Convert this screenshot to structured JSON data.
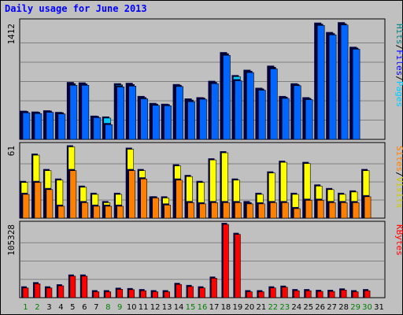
{
  "chart_data": {
    "type": "bar",
    "title": "Daily usage for June 2013",
    "days": [
      "1",
      "2",
      "3",
      "4",
      "5",
      "6",
      "7",
      "8",
      "9",
      "10",
      "11",
      "12",
      "13",
      "14",
      "15",
      "16",
      "17",
      "18",
      "19",
      "20",
      "21",
      "22",
      "23",
      "24",
      "25",
      "26",
      "27",
      "28",
      "29",
      "30",
      "31"
    ],
    "weekend_days": [
      "1",
      "2",
      "8",
      "9",
      "15",
      "16",
      "22",
      "23",
      "29",
      "30"
    ],
    "colors": {
      "hits": "#00ccff",
      "files": "#0066ff",
      "pages": "#00ccff",
      "visits": "#ffff00",
      "sites": "#ff8000",
      "kbytes": "#ff0000",
      "title": "#0000ff",
      "weekday_label": "#000000",
      "weekend_label": "#008000"
    },
    "panels": [
      {
        "id": "hits-files-pages",
        "max_label": "1412",
        "ymax": 1412,
        "legend": [
          {
            "text": "Pages",
            "color": "#00ccff"
          },
          {
            "text": "/",
            "color": "#000000"
          },
          {
            "text": "Files",
            "color": "#0000ff"
          },
          {
            "text": "/",
            "color": "#000000"
          },
          {
            "text": "Hits",
            "color": "#008080"
          }
        ],
        "series": [
          {
            "name": "Hits",
            "color": "#00ccff",
            "values": [
              330,
              320,
              335,
              315,
              680,
              675,
              270,
              260,
              665,
              670,
              510,
              425,
              415,
              655,
              480,
              495,
              695,
              1045,
              765,
              830,
              610,
              880,
              510,
              665,
              495,
              1405,
              1290,
              1410,
              1110,
              0,
              0
            ]
          },
          {
            "name": "Files",
            "color": "#0066ff",
            "values": [
              325,
              315,
              330,
              310,
              660,
              660,
              265,
              180,
              640,
              650,
              495,
              415,
              410,
              645,
              460,
              490,
              680,
              1025,
              715,
              815,
              600,
              860,
              500,
              655,
              485,
              1390,
              1275,
              1395,
              1100,
              0,
              0
            ]
          }
        ]
      },
      {
        "id": "visits-sites",
        "max_label": "61",
        "ymax": 61,
        "legend": [
          {
            "text": "Visits",
            "color": "#cccc00"
          },
          {
            "text": "/",
            "color": "#000000"
          },
          {
            "text": "Sites",
            "color": "#ff8000"
          }
        ],
        "series": [
          {
            "name": "Visits",
            "color": "#ffff00",
            "values": [
              30,
              53,
              40,
              32,
              60,
              26,
              20,
              13,
              20,
              58,
              40,
              17,
              17,
              44,
              35,
              30,
              49,
              55,
              32,
              13,
              20,
              38,
              47,
              20,
              46,
              27,
              24,
              20,
              22,
              40,
              0
            ]
          },
          {
            "name": "Sites",
            "color": "#ff8000",
            "values": [
              20,
              30,
              24,
              10,
              40,
              13,
              10,
              10,
              10,
              40,
              33,
              17,
              11,
              32,
              13,
              12,
              13,
              13,
              13,
              12,
              12,
              13,
              13,
              8,
              15,
              15,
              13,
              13,
              13,
              18,
              0
            ]
          }
        ]
      },
      {
        "id": "kbytes",
        "max_label": "105328",
        "ymax": 105328,
        "legend": [
          {
            "text": "KBytes",
            "color": "#ff0000"
          }
        ],
        "series": [
          {
            "name": "KBytes",
            "color": "#ff0000",
            "values": [
              14000,
              20000,
              14000,
              17000,
              31000,
              31000,
              8500,
              8500,
              12000,
              11500,
              10000,
              8500,
              8500,
              19000,
              16000,
              14000,
              28000,
              105328,
              91000,
              8500,
              8500,
              14000,
              15000,
              10000,
              10000,
              9000,
              9000,
              11000,
              8500,
              10000,
              0
            ]
          }
        ]
      }
    ]
  }
}
